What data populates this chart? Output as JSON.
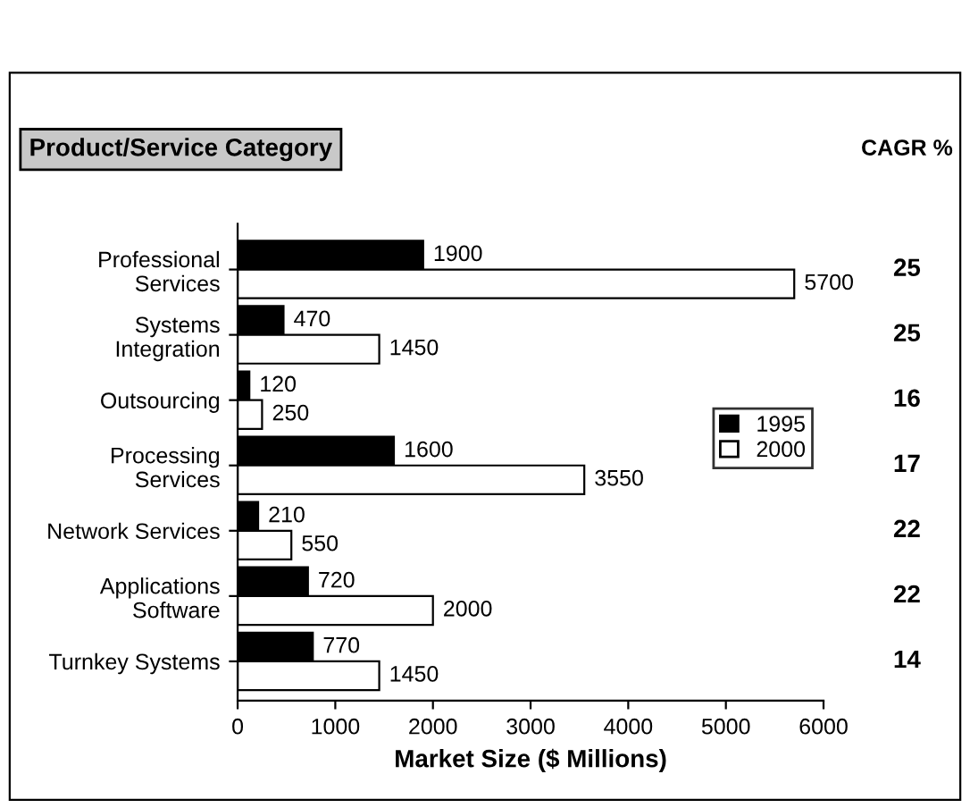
{
  "chart_data": {
    "type": "bar",
    "orientation": "horizontal",
    "ylabel": "Product/Service Category",
    "xlabel": "Market Size ($ Millions)",
    "categories": [
      "Professional\nServices",
      "Systems\nIntegration",
      "Outsourcing",
      "Processing\nServices",
      "Network Services",
      "Applications\nSoftware",
      "Turnkey Systems"
    ],
    "series": [
      {
        "name": "1995",
        "color": "#000000",
        "values": [
          1900,
          470,
          120,
          1600,
          210,
          720,
          770
        ]
      },
      {
        "name": "2000",
        "color": "#ffffff",
        "values": [
          5700,
          1450,
          250,
          3550,
          550,
          2000,
          1450
        ]
      }
    ],
    "xlim": [
      0,
      6000
    ],
    "xticks": [
      0,
      1000,
      2000,
      3000,
      4000,
      5000,
      6000
    ],
    "data_labels": true,
    "legend": "right",
    "grid": false,
    "annotations": [
      "CAGR %",
      "25",
      "25",
      "16",
      "17",
      "22",
      "22",
      "14"
    ]
  }
}
